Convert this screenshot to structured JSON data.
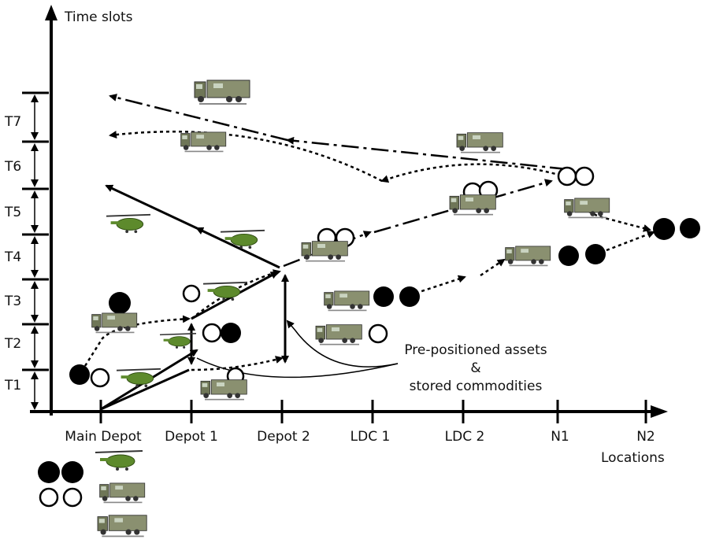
{
  "y_axis_label": "Time slots",
  "x_axis_label": "Locations",
  "time_slots": [
    "T7",
    "T6",
    "T5",
    "T4",
    "T3",
    "T2",
    "T1"
  ],
  "locations": [
    "Main Depot",
    "Depot 1",
    "Depot 2",
    "LDC 1",
    "LDC 2",
    "N1",
    "N2"
  ],
  "annotation": [
    "Pre-positioned assets",
    "&",
    "stored commodities"
  ]
}
